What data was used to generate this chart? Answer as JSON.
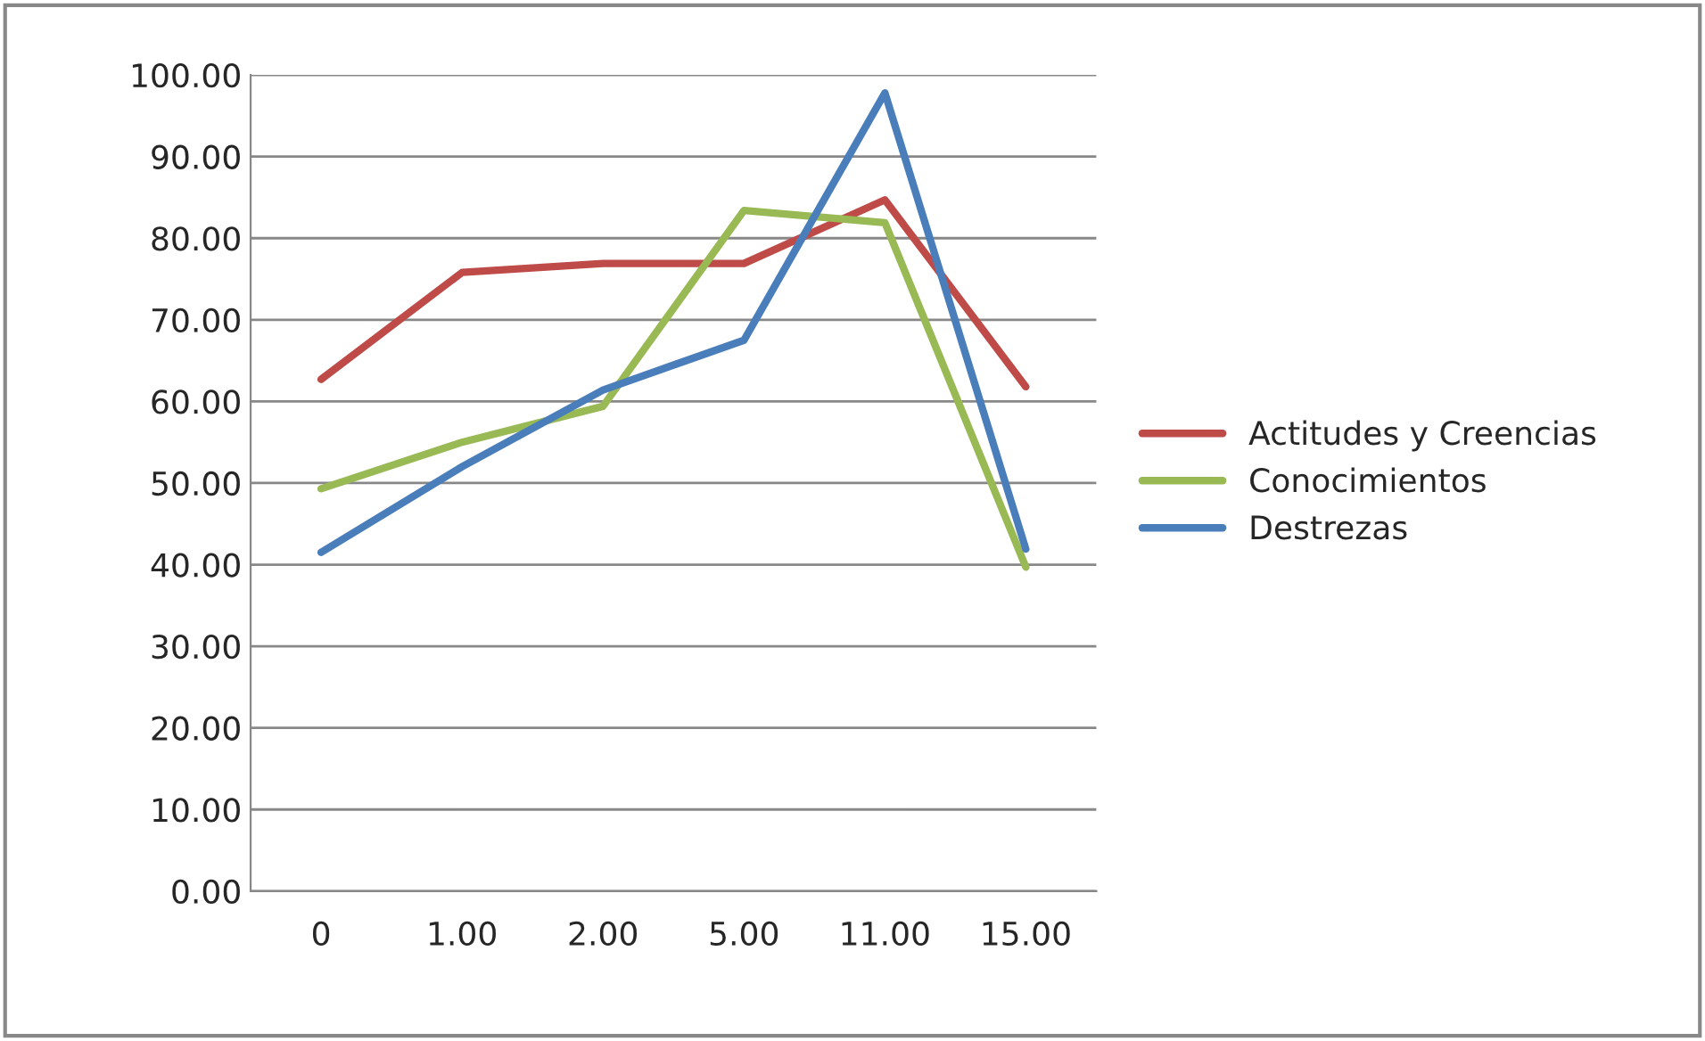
{
  "chart_data": {
    "type": "line",
    "categories": [
      "0",
      "1.00",
      "2.00",
      "5.00",
      "11.00",
      "15.00"
    ],
    "ylim": [
      0,
      100
    ],
    "yticks": [
      {
        "value": 0,
        "label": "0.00"
      },
      {
        "value": 10,
        "label": "10.00"
      },
      {
        "value": 20,
        "label": "20.00"
      },
      {
        "value": 30,
        "label": "30.00"
      },
      {
        "value": 40,
        "label": "40.00"
      },
      {
        "value": 50,
        "label": "50.00"
      },
      {
        "value": 60,
        "label": "60.00"
      },
      {
        "value": 70,
        "label": "70.00"
      },
      {
        "value": 80,
        "label": "80.00"
      },
      {
        "value": 90,
        "label": "90.00"
      },
      {
        "value": 100,
        "label": "100.00"
      }
    ],
    "grid": "y",
    "legend": "right",
    "marker": "none",
    "line_style": "solid",
    "series": [
      {
        "name": "Actitudes y Creencias",
        "color": "#be4b48",
        "values": [
          62.7,
          75.8,
          76.9,
          76.9,
          84.7,
          61.8
        ]
      },
      {
        "name": "Conocimientos",
        "color": "#98b954",
        "values": [
          49.3,
          55,
          59.4,
          83.4,
          81.9,
          39.7
        ]
      },
      {
        "name": "Destrezas",
        "color": "#4a7ebb",
        "values": [
          41.5,
          52,
          61.4,
          67.5,
          97.8,
          41.9
        ]
      }
    ]
  }
}
